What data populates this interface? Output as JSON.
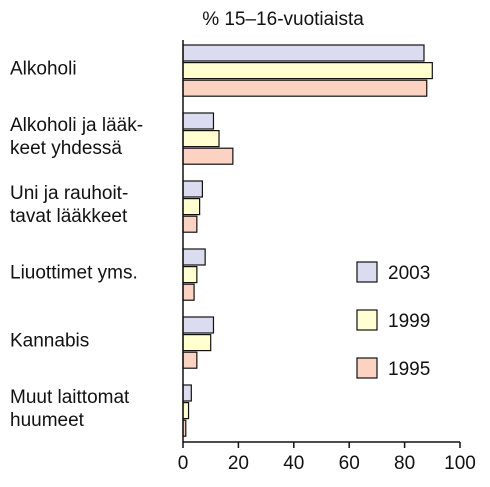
{
  "chart_data": {
    "type": "hbar",
    "title": "% 15–16-vuotiaista",
    "categories": [
      "Alkoholi",
      "Alkoholi ja lääk-\nkeet yhdessä",
      "Uni ja rauhoit-\ntavat lääkkeet",
      "Liuottimet yms.",
      "Kannabis",
      "Muut laittomat\nhuumeet"
    ],
    "series": [
      {
        "name": "2003",
        "color": "#dcdcf0",
        "values": [
          87,
          11,
          7,
          8,
          11,
          3
        ]
      },
      {
        "name": "1999",
        "color": "#ffffd2",
        "values": [
          90,
          13,
          6,
          5,
          10,
          2
        ]
      },
      {
        "name": "1995",
        "color": "#fcd2c2",
        "values": [
          88,
          18,
          5,
          4,
          5,
          1
        ]
      }
    ],
    "xlim": [
      0,
      100
    ],
    "xticks": [
      0,
      20,
      40,
      60,
      80,
      100
    ]
  }
}
